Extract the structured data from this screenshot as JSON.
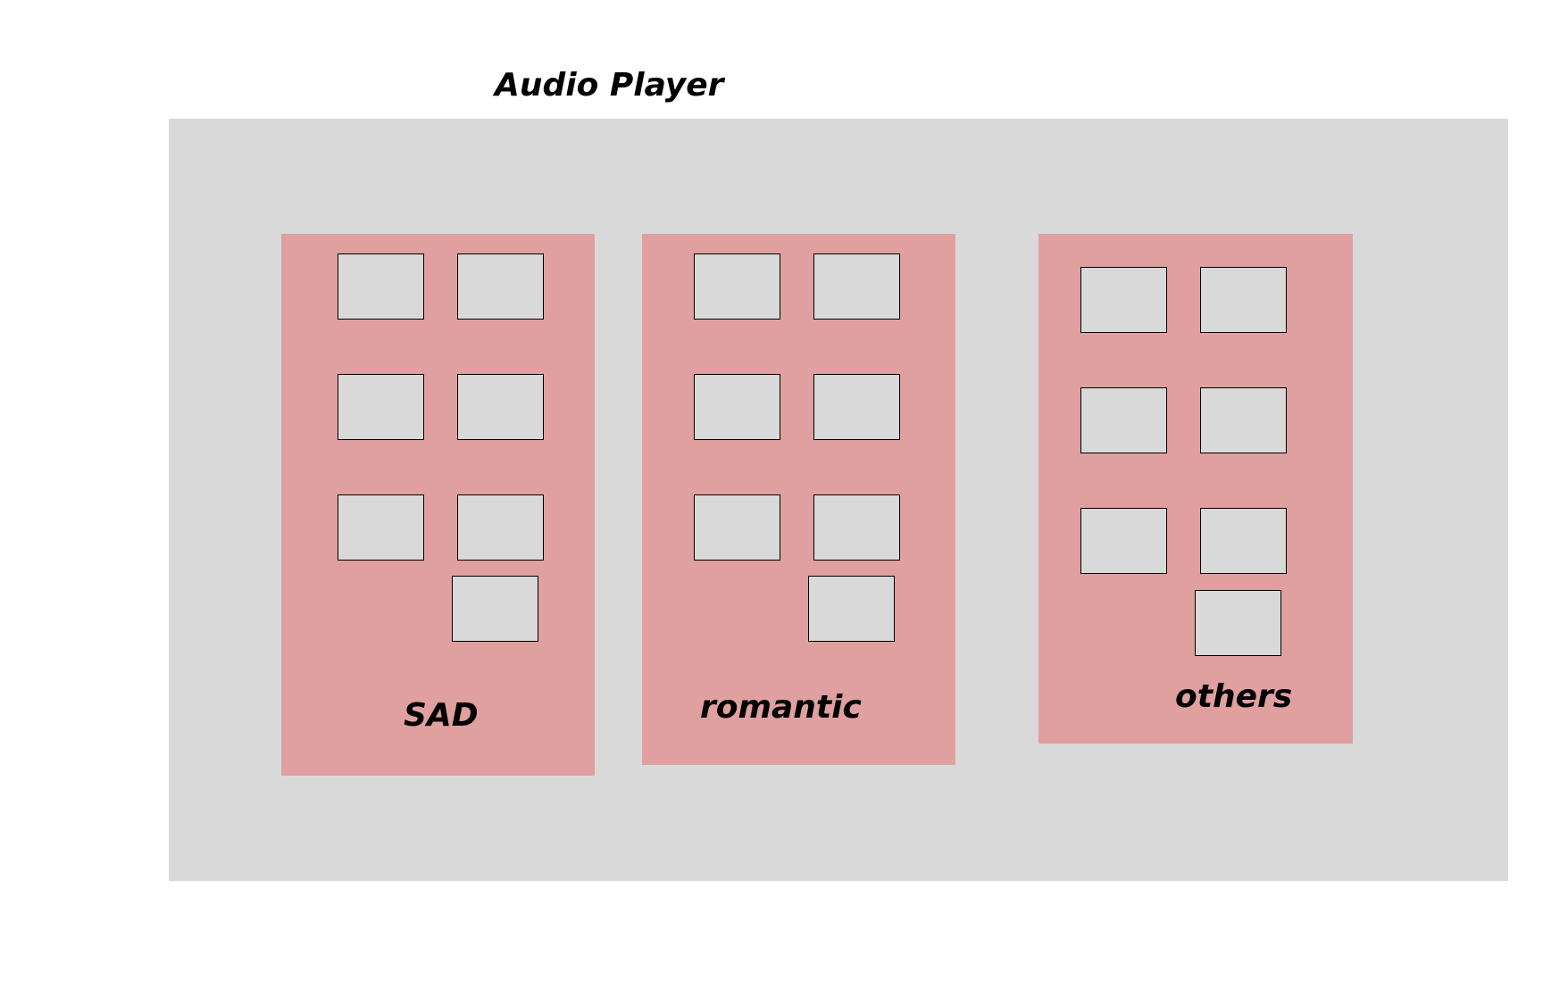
{
  "header": {
    "title": "Audio Player"
  },
  "categories": [
    {
      "label": "SAD",
      "track_count": 7
    },
    {
      "label": "romantic",
      "track_count": 7
    },
    {
      "label": "others",
      "track_count": 7
    }
  ],
  "colors": {
    "page_background": "#ffffff",
    "player_background": "#d9d9d9",
    "category_background": "#e0a0a0",
    "tile_background": "#d9d9d9",
    "tile_border": "#000000",
    "text": "#000000"
  }
}
